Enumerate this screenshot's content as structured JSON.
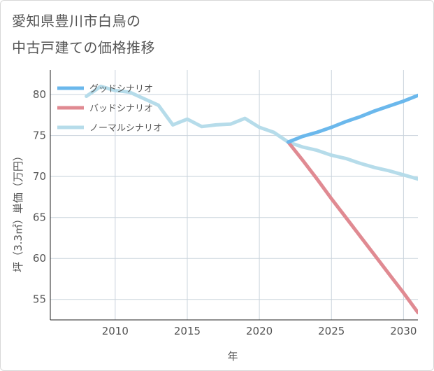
{
  "title_lines": [
    "愛知県豊川市白鳥の",
    "中古戸建ての価格推移"
  ],
  "chart_data": {
    "type": "line",
    "xlabel": "年",
    "ylabel": "坪（3.3㎡）単価（万円）",
    "xlim": [
      2005.5,
      2031
    ],
    "ylim": [
      52.5,
      83
    ],
    "xticks": [
      2010,
      2015,
      2020,
      2025,
      2030
    ],
    "yticks": [
      55,
      60,
      65,
      70,
      75,
      80
    ],
    "grid": true,
    "legend_position": "top-left",
    "series": [
      {
        "name": "グッドシナリオ",
        "color": "#6bb8ec",
        "x": [
          2022,
          2023,
          2024,
          2025,
          2026,
          2027,
          2028,
          2029,
          2030,
          2031
        ],
        "y": [
          74.2,
          74.9,
          75.4,
          76.0,
          76.7,
          77.3,
          78.0,
          78.6,
          79.2,
          79.9
        ]
      },
      {
        "name": "バッドシナリオ",
        "color": "#e08a92",
        "x": [
          2022,
          2023,
          2024,
          2025,
          2026,
          2027,
          2028,
          2029,
          2030,
          2031
        ],
        "y": [
          74.2,
          72.0,
          69.7,
          67.3,
          65.0,
          62.7,
          60.4,
          58.1,
          55.8,
          53.4
        ]
      },
      {
        "name": "ノーマルシナリオ",
        "color": "#b6dcea",
        "x": [
          2008,
          2009,
          2010,
          2011,
          2012,
          2013,
          2014,
          2015,
          2016,
          2017,
          2018,
          2019,
          2020,
          2021,
          2022,
          2023,
          2024,
          2025,
          2026,
          2027,
          2028,
          2029,
          2030,
          2031
        ],
        "y": [
          79.8,
          81.0,
          80.5,
          80.3,
          79.5,
          78.7,
          76.3,
          77.0,
          76.1,
          76.3,
          76.4,
          77.1,
          76.0,
          75.4,
          74.2,
          73.6,
          73.2,
          72.6,
          72.2,
          71.6,
          71.1,
          70.7,
          70.2,
          69.7
        ]
      }
    ]
  }
}
